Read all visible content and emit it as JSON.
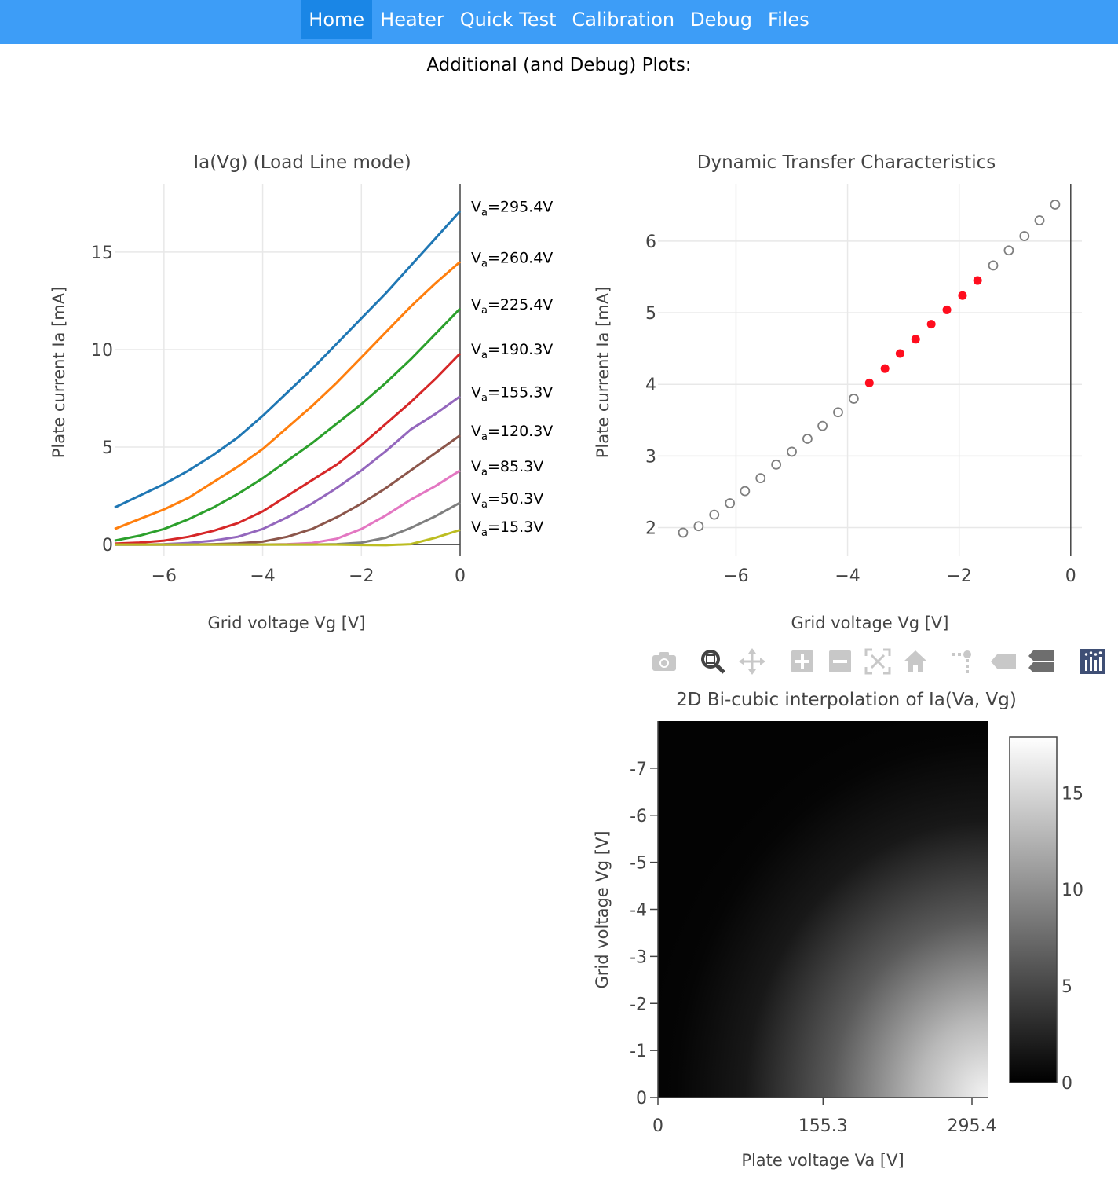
{
  "nav": {
    "items": [
      {
        "label": "Home",
        "active": true
      },
      {
        "label": "Heater",
        "active": false
      },
      {
        "label": "Quick Test",
        "active": false
      },
      {
        "label": "Calibration",
        "active": false
      },
      {
        "label": "Debug",
        "active": false
      },
      {
        "label": "Files",
        "active": false
      }
    ]
  },
  "page_title": "Additional (and Debug) Plots:",
  "modebar": {
    "icons": [
      "camera-icon",
      "zoom-icon",
      "pan-icon",
      "zoom-in-icon",
      "zoom-out-icon",
      "autoscale-icon",
      "reset-axes-icon",
      "spike-lines-icon",
      "hover-closest-icon",
      "hover-compare-icon",
      "plotly-logo-icon"
    ]
  },
  "chart_data": [
    {
      "type": "line",
      "title": "Ia(Vg) (Load Line mode)",
      "xlabel": "Grid voltage Vg [V]",
      "ylabel": "Plate current Ia [mA]",
      "xlim": [
        -7,
        0
      ],
      "ylim": [
        -0.6,
        18.5
      ],
      "xticks": [
        -6,
        -4,
        -2,
        0
      ],
      "yticks": [
        0,
        5,
        10,
        15
      ],
      "grid": true,
      "x": [
        -7,
        -6.5,
        -6,
        -5.5,
        -5,
        -4.5,
        -4,
        -3.5,
        -3,
        -2.5,
        -2,
        -1.5,
        -1,
        -0.5,
        0
      ],
      "series": [
        {
          "name": "Va=295.4V",
          "label_sub": "a",
          "label_rest": "=295.4V",
          "color": "#1f77b4",
          "values": [
            1.9,
            2.5,
            3.1,
            3.8,
            4.6,
            5.5,
            6.6,
            7.8,
            9.0,
            10.3,
            11.6,
            12.9,
            14.3,
            15.7,
            17.1
          ]
        },
        {
          "name": "Va=260.4V",
          "label_sub": "a",
          "label_rest": "=260.4V",
          "color": "#ff7f0e",
          "values": [
            0.8,
            1.3,
            1.8,
            2.4,
            3.2,
            4.0,
            4.9,
            6.0,
            7.1,
            8.3,
            9.6,
            10.9,
            12.2,
            13.4,
            14.5
          ]
        },
        {
          "name": "Va=225.4V",
          "label_sub": "a",
          "label_rest": "=225.4V",
          "color": "#2ca02c",
          "values": [
            0.2,
            0.45,
            0.8,
            1.3,
            1.9,
            2.6,
            3.4,
            4.3,
            5.2,
            6.2,
            7.2,
            8.3,
            9.5,
            10.8,
            12.1
          ]
        },
        {
          "name": "Va=190.3V",
          "label_sub": "a",
          "label_rest": "=190.3V",
          "color": "#d62728",
          "values": [
            0.05,
            0.1,
            0.2,
            0.4,
            0.7,
            1.1,
            1.7,
            2.5,
            3.3,
            4.1,
            5.1,
            6.2,
            7.3,
            8.5,
            9.8
          ]
        },
        {
          "name": "Va=155.3V",
          "label_sub": "a",
          "label_rest": "=155.3V",
          "color": "#9467bd",
          "values": [
            0,
            0,
            0.02,
            0.08,
            0.2,
            0.4,
            0.8,
            1.4,
            2.1,
            2.9,
            3.8,
            4.8,
            5.9,
            6.7,
            7.6
          ]
        },
        {
          "name": "Va=120.3V",
          "label_sub": "a",
          "label_rest": "=120.3V",
          "color": "#8c564b",
          "values": [
            0,
            0,
            0,
            0,
            0.02,
            0.06,
            0.15,
            0.4,
            0.8,
            1.4,
            2.1,
            2.9,
            3.8,
            4.7,
            5.6
          ]
        },
        {
          "name": "Va=85.3V",
          "label_sub": "a",
          "label_rest": "=85.3V",
          "color": "#e377c2",
          "values": [
            0,
            0,
            0,
            0,
            0,
            0,
            0,
            0.02,
            0.08,
            0.3,
            0.8,
            1.5,
            2.3,
            3.0,
            3.8
          ]
        },
        {
          "name": "Va=50.3V",
          "label_sub": "a",
          "label_rest": "=50.3V",
          "color": "#7f7f7f",
          "values": [
            0,
            0,
            0,
            0,
            0,
            0,
            0,
            0,
            0,
            0.02,
            0.1,
            0.35,
            0.85,
            1.45,
            2.15
          ]
        },
        {
          "name": "Va=15.3V",
          "label_sub": "a",
          "label_rest": "=15.3V",
          "color": "#bcbd22",
          "values": [
            0,
            0,
            0,
            0,
            0,
            0,
            0,
            0,
            0,
            0,
            -0.02,
            -0.03,
            0.02,
            0.35,
            0.75
          ]
        }
      ]
    },
    {
      "type": "scatter",
      "title": "Dynamic Transfer Characteristics",
      "xlabel": "Grid voltage Vg [V]",
      "ylabel": "Plate current Ia [mA]",
      "xlim": [
        -7.4,
        0.2
      ],
      "ylim": [
        1.6,
        6.8
      ],
      "xticks": [
        -6,
        -4,
        -2,
        0
      ],
      "yticks": [
        2,
        3,
        4,
        5,
        6
      ],
      "grid": true,
      "hollow_color": "#7f7f7f",
      "highlight_color": "#ff0d1e",
      "points": [
        {
          "x": -6.95,
          "y": 1.93,
          "h": false
        },
        {
          "x": -6.67,
          "y": 2.02,
          "h": false
        },
        {
          "x": -6.39,
          "y": 2.18,
          "h": false
        },
        {
          "x": -6.11,
          "y": 2.34,
          "h": false
        },
        {
          "x": -5.84,
          "y": 2.51,
          "h": false
        },
        {
          "x": -5.56,
          "y": 2.69,
          "h": false
        },
        {
          "x": -5.28,
          "y": 2.88,
          "h": false
        },
        {
          "x": -5.0,
          "y": 3.06,
          "h": false
        },
        {
          "x": -4.72,
          "y": 3.24,
          "h": false
        },
        {
          "x": -4.45,
          "y": 3.42,
          "h": false
        },
        {
          "x": -4.17,
          "y": 3.61,
          "h": false
        },
        {
          "x": -3.89,
          "y": 3.8,
          "h": false
        },
        {
          "x": -3.61,
          "y": 4.02,
          "h": true
        },
        {
          "x": -3.33,
          "y": 4.22,
          "h": true
        },
        {
          "x": -3.06,
          "y": 4.43,
          "h": true
        },
        {
          "x": -2.78,
          "y": 4.63,
          "h": true
        },
        {
          "x": -2.5,
          "y": 4.84,
          "h": true
        },
        {
          "x": -2.22,
          "y": 5.04,
          "h": true
        },
        {
          "x": -1.94,
          "y": 5.24,
          "h": true
        },
        {
          "x": -1.67,
          "y": 5.45,
          "h": true
        },
        {
          "x": -1.39,
          "y": 5.66,
          "h": false
        },
        {
          "x": -1.11,
          "y": 5.87,
          "h": false
        },
        {
          "x": -0.83,
          "y": 6.07,
          "h": false
        },
        {
          "x": -0.56,
          "y": 6.29,
          "h": false
        },
        {
          "x": -0.28,
          "y": 6.51,
          "h": false
        }
      ]
    },
    {
      "type": "heatmap",
      "title": "2D Bi-cubic interpolation of Ia(Va, Vg)",
      "xlabel": "Plate voltage Va [V]",
      "ylabel": "Grid voltage Vg [V]",
      "xlim": [
        0,
        295.4
      ],
      "ylim": [
        0,
        -8
      ],
      "xticks": [
        0,
        155.3,
        295.4
      ],
      "xticklabels": [
        "0",
        "155.3",
        "295.4"
      ],
      "yticks": [
        0,
        -1,
        -2,
        -3,
        -4,
        -5,
        -6,
        -7
      ],
      "yticklabels": [
        "0",
        "-1",
        "-2",
        "-3",
        "-4",
        "-5",
        "-6",
        "-7"
      ],
      "colorscale": "Greys (black to white)",
      "zlim": [
        0,
        17.9
      ],
      "colorbar_ticks": [
        0,
        5,
        10,
        15
      ]
    }
  ]
}
